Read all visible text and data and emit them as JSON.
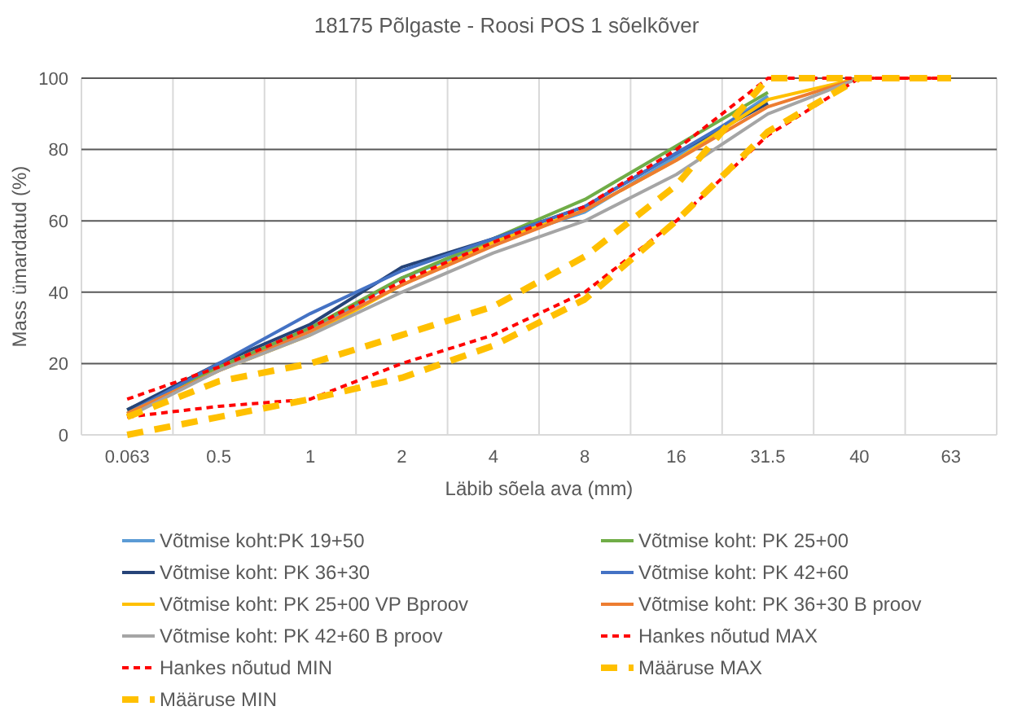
{
  "chart_data": {
    "type": "line",
    "title": "18175 Põlgaste - Roosi POS 1 sõelkõver",
    "xlabel": "Läbib sõela ava (mm)",
    "ylabel": "Mass ümardatud (%)",
    "categories": [
      "0.063",
      "0.5",
      "1",
      "2",
      "4",
      "8",
      "16",
      "31.5",
      "40",
      "63"
    ],
    "ylim": [
      0,
      100
    ],
    "yticks": [
      0,
      20,
      40,
      60,
      80,
      100
    ],
    "grid": true,
    "legend": "bottom",
    "marker": "none",
    "series": [
      {
        "name": "Võtmise koht:PK 19+50",
        "color": "#5b9bd5",
        "values": [
          7,
          19,
          29,
          44,
          54,
          62.5,
          78,
          95,
          null,
          null
        ]
      },
      {
        "name": "Võtmise koht: PK 25+00",
        "color": "#70ad47",
        "values": [
          7,
          19,
          30,
          44,
          55,
          66,
          81,
          96,
          null,
          null
        ]
      },
      {
        "name": "Võtmise koht: PK 36+30",
        "color": "#264478",
        "values": [
          7,
          20,
          31,
          47,
          55,
          64,
          79,
          93,
          null,
          null
        ]
      },
      {
        "name": "Võtmise koht: PK 42+60",
        "color": "#4472c4",
        "values": [
          6,
          20,
          34,
          46,
          55,
          64,
          79,
          94,
          null,
          null
        ]
      },
      {
        "name": "Võtmise koht: PK 25+00 VP Bproov",
        "color": "#ffc000",
        "values": [
          6,
          18,
          28,
          42,
          54,
          63,
          77,
          94,
          100,
          null
        ]
      },
      {
        "name": "Võtmise koht: PK 36+30 B proov",
        "color": "#ed7d31",
        "values": [
          6,
          18,
          29,
          42,
          53,
          63,
          77,
          92,
          100,
          null
        ]
      },
      {
        "name": "Võtmise koht: PK 42+60 B proov",
        "color": "#a5a5a5",
        "values": [
          5,
          18,
          28,
          40,
          51,
          60,
          73,
          90,
          100,
          null
        ]
      },
      {
        "name": "Hankes nõutud MAX",
        "color": "#ff0000",
        "line_style": "dotted",
        "values": [
          10,
          19,
          30,
          43,
          54,
          64,
          80,
          100,
          100,
          100
        ]
      },
      {
        "name": "Hankes nõutud MIN",
        "color": "#ff0000",
        "line_style": "dotted",
        "values": [
          5,
          8,
          10,
          20,
          28,
          40,
          60,
          84,
          100,
          100
        ]
      },
      {
        "name": "Määruse MAX",
        "color": "#ffc000",
        "line_style": "dashed",
        "values": [
          5,
          15,
          20,
          28,
          36,
          50,
          70,
          100,
          100,
          100
        ]
      },
      {
        "name": "Määruse MIN",
        "color": "#ffc000",
        "line_style": "dashed",
        "values": [
          0,
          5,
          10,
          16,
          25,
          38,
          60,
          85,
          100,
          100
        ]
      }
    ]
  }
}
